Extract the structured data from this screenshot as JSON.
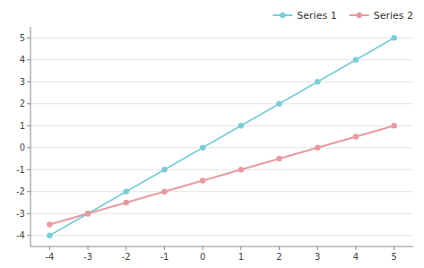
{
  "chart_data": {
    "type": "line",
    "x": [
      -4,
      -3,
      -2,
      -1,
      0,
      1,
      2,
      3,
      4,
      5
    ],
    "series": [
      {
        "name": "Series 1",
        "color": "#7CCDD8",
        "marker": "circle",
        "values": [
          -4,
          -3,
          -2,
          -1,
          0,
          1,
          2,
          3,
          4,
          5
        ]
      },
      {
        "name": "Series 2",
        "color": "#E899A0",
        "marker": "circle",
        "values": [
          -3.5,
          -3.0,
          -2.5,
          -2.0,
          -1.5,
          -1.0,
          -0.5,
          0.0,
          0.5,
          1.0
        ]
      }
    ],
    "xlim": [
      -4.5,
      5.5
    ],
    "ylim": [
      -4.5,
      5.5
    ],
    "xticks": [
      -4,
      -3,
      -2,
      -1,
      0,
      1,
      2,
      3,
      4,
      5
    ],
    "yticks": [
      -4,
      -3,
      -2,
      -1,
      0,
      1,
      2,
      3,
      4,
      5
    ],
    "grid": true,
    "legend": "upper right"
  }
}
